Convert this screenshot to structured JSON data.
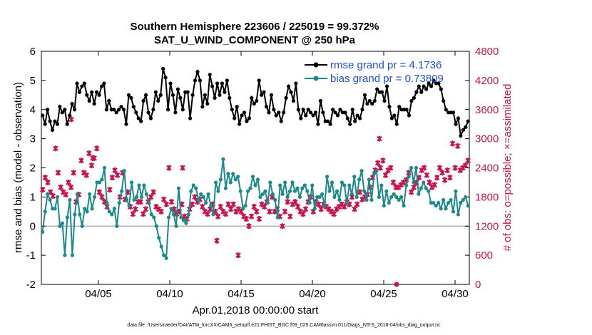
{
  "chart_data": {
    "type": "line",
    "title": "Southern Hemisphere 223606 / 225019 = 99.372%",
    "subtitle": "SAT_U_WIND_COMPONENT @ 250 hPa",
    "xlabel": "Apr.01,2018 00:00:00 start",
    "ylabel": "rmse and bias (model - observation)",
    "ylabel_right": "# of obs: o=possible; ×=assimilated",
    "ylim": [
      -2,
      6
    ],
    "ylim_right": [
      0,
      4800
    ],
    "x_ticks": [
      "04/05",
      "04/10",
      "04/15",
      "04/20",
      "04/25",
      "04/30"
    ],
    "y_ticks": [
      "-2",
      "-1",
      "0",
      "1",
      "2",
      "3",
      "4",
      "5",
      "6"
    ],
    "y_ticks_right": [
      "0",
      "600",
      "1200",
      "1800",
      "2400",
      "3000",
      "3600",
      "4200",
      "4800"
    ],
    "footer": "data file: /Users/raeder/DAI/ATM_forcXX/CAM6_setup/f.e21.FHIST_BGC.f09_025.CAM6assim.011/Diags_NTrS_2018-04/obs_diag_output.nc",
    "series": [
      {
        "name": "rmse grand pr = 4.1736",
        "color": "#000000",
        "marker": "dot",
        "values": [
          3.8,
          3.5,
          4.0,
          3.6,
          3.3,
          3.6,
          3.5,
          4.1,
          3.9,
          4.0,
          3.5,
          3.8,
          4.2,
          4.0,
          4.9,
          4.6,
          4.8,
          4.9,
          4.5,
          4.3,
          4.6,
          4.2,
          4.6,
          4.5,
          4.8,
          4.9,
          4.0,
          4.3,
          4.0,
          4.0,
          3.9,
          4.0,
          4.1,
          4.0,
          3.5,
          4.5,
          4.4,
          4.1,
          3.9,
          3.7,
          3.6,
          4.3,
          4.5,
          3.9,
          3.7,
          4.0,
          4.6,
          4.3,
          4.5,
          5.4,
          5.1,
          4.0,
          4.9,
          4.5,
          3.9,
          4.7,
          4.4,
          4.0,
          4.6,
          4.6,
          3.7,
          4.5,
          5.0,
          5.3,
          5.0,
          4.1,
          4.5,
          4.2,
          5.2,
          4.8,
          4.4,
          4.9,
          4.5,
          4.9,
          4.6,
          5.0,
          4.4,
          4.0,
          3.7,
          4.1,
          3.5,
          3.8,
          3.9,
          3.6,
          3.7,
          4.4,
          4.2,
          4.3,
          5.0,
          4.5,
          4.6,
          4.1,
          3.9,
          4.5,
          4.0,
          3.8,
          3.9,
          3.6,
          3.9,
          4.4,
          4.8,
          4.6,
          4.3,
          4.9,
          4.0,
          3.7,
          4.0,
          3.8,
          4.0,
          3.9,
          3.8,
          3.9,
          3.5,
          4.3,
          3.9,
          3.6,
          3.6,
          3.5,
          4.0,
          3.9,
          3.8,
          4.0,
          3.9,
          3.9,
          3.7,
          3.5,
          4.0,
          3.6,
          3.8,
          3.7,
          4.0,
          4.5,
          4.2,
          4.3,
          4.2,
          4.3,
          4.7,
          4.6,
          4.6,
          4.3,
          4.8,
          4.1,
          3.7,
          3.8,
          3.5,
          4.1,
          4.0,
          4.0,
          4.0,
          3.8,
          4.3,
          4.4,
          4.6,
          4.8,
          4.6,
          4.8,
          4.7,
          4.9,
          4.8,
          5.0,
          4.9,
          4.9,
          4.7,
          4.3,
          4.0,
          3.9,
          3.9,
          3.9,
          3.5,
          3.7,
          3.1,
          3.3,
          3.4,
          3.6
        ]
      },
      {
        "name": "bias grand pr = 0.73809",
        "color": "#1a8a8a",
        "marker": "dot",
        "values": [
          -0.2,
          0.5,
          1.1,
          0.9,
          0.6,
          0.6,
          1.0,
          0.0,
          0.1,
          -1.0,
          0.3,
          0.9,
          -1.0,
          0.4,
          1.1,
          0.4,
          0.0,
          0.6,
          0.5,
          1.1,
          0.6,
          1.0,
          1.5,
          1.5,
          1.6,
          2.0,
          0.8,
          0.5,
          0.4,
          0.6,
          0.0,
          0.8,
          1.2,
          1.9,
          0.9,
          0.7,
          1.5,
          0.9,
          1.0,
          1.4,
          1.0,
          1.4,
          1.1,
          0.8,
          0.4,
          0.3,
          0.0,
          -0.4,
          -0.7,
          -1.0,
          -1.1,
          0.3,
          0.6,
          0.4,
          0.0,
          1.3,
          0.3,
          0.2,
          0.1,
          0.4,
          1.2,
          1.4,
          1.3,
          0.9,
          1.1,
          1.0,
          0.8,
          1.1,
          0.7,
          0.4,
          1.5,
          1.2,
          1.6,
          2.3,
          1.3,
          1.8,
          1.5,
          1.8,
          1.6,
          1.7,
          1.2,
          0.6,
          0.7,
          1.2,
          1.3,
          1.7,
          1.4,
          1.6,
          1.0,
          1.1,
          1.2,
          0.8,
          1.5,
          1.1,
          0.9,
          0.3,
          1.4,
          1.1,
          1.5,
          1.0,
          1.2,
          1.5,
          1.2,
          1.3,
          1.0,
          1.3,
          1.4,
          1.2,
          0.8,
          1.4,
          0.6,
          1.0,
          1.0,
          1.1,
          0.7,
          1.7,
          1.2,
          1.5,
          1.0,
          1.2,
          0.9,
          1.5,
          1.4,
          0.8,
          1.4,
          1.1,
          1.7,
          1.0,
          1.6,
          1.9,
          1.2,
          0.9,
          1.6,
          0.9,
          1.8,
          1.9,
          1.0,
          1.4,
          0.7,
          1.2,
          0.8,
          1.0,
          1.1,
          1.0,
          0.9,
          1.0,
          0.7,
          1.4,
          1.7,
          2.0,
          1.5,
          2.0,
          1.1,
          1.3,
          1.5,
          1.3,
          1.2,
          0.8,
          0.8,
          0.7,
          0.8,
          0.6,
          0.9,
          0.6,
          0.8,
          0.9,
          0.5,
          1.2,
          0.4,
          0.8,
          0.9,
          1.0,
          0.7
        ]
      },
      {
        "name": "# of obs assimilated",
        "axis": "right",
        "color": "#c8134e",
        "marker": "x",
        "values": [
          1950,
          2200,
          2100,
          1900,
          1820,
          2800,
          2300,
          2000,
          1900,
          1850,
          2100,
          2000,
          2300,
          1700,
          1850,
          2550,
          2300,
          2250,
          2700,
          2450,
          2600,
          2800,
          1900,
          1800,
          1700,
          1600,
          1950,
          2200,
          2350,
          2250,
          1800,
          2300,
          1750,
          1900,
          1600,
          1450,
          1550,
          1700,
          1700,
          1450,
          1550,
          1700,
          1800,
          1900,
          1600,
          1550,
          1500,
          1750,
          1650,
          2400,
          1700,
          1550,
          1450,
          1500,
          1650,
          1400,
          1350,
          1550,
          1650,
          1800,
          1700,
          1750,
          1600,
          1500,
          1450,
          1550,
          1650,
          1500,
          1400,
          1600,
          1500,
          1450,
          1650,
          1550,
          1650,
          1500,
          1550,
          1500,
          1400,
          1350,
          1200,
          1400,
          1600,
          1500,
          1350,
          1650,
          1600,
          1700,
          1500,
          1800,
          1500,
          1550,
          1400,
          1200,
          1500,
          1700,
          1400,
          1650,
          1700,
          1600,
          1500,
          1450,
          1550,
          1700,
          1800,
          1500,
          1700,
          1650,
          1550,
          1650,
          1600,
          1550,
          1500,
          1450,
          1550,
          1600,
          1650,
          1600,
          1700,
          1650,
          1800,
          1550,
          1650,
          1900,
          1750,
          1800,
          1850,
          2000,
          2200,
          2350,
          2500,
          2400,
          2550,
          2250,
          2350,
          2400,
          2100,
          2000,
          2000,
          2050,
          2100,
          2150,
          2300,
          1900,
          2000,
          2100,
          2200,
          2350,
          2400,
          2250,
          2100,
          2000,
          2050,
          2200,
          2400,
          2300,
          2150,
          2350,
          2200,
          2900,
          2400,
          2850,
          2350,
          2400,
          2450,
          2550
        ],
        "extra_points": [
          3400,
          2600,
          900,
          3000,
          2400,
          600,
          0
        ]
      }
    ]
  }
}
